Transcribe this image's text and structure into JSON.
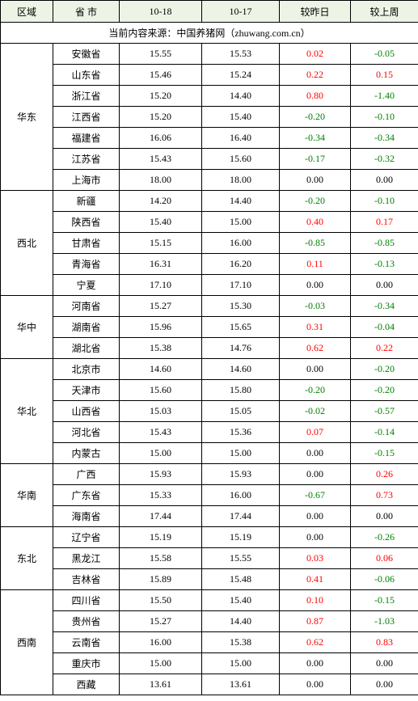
{
  "headers": {
    "region": "区域",
    "province": "省 市",
    "date1": "10-18",
    "date2": "10-17",
    "vs_yesterday": "较昨日",
    "vs_lastweek": "较上周"
  },
  "source_line": "当前内容来源：中国养猪网（zhuwang.com.cn）",
  "colors": {
    "header_bg": "#edf4e5",
    "border": "#000000",
    "positive": "#ff0000",
    "negative": "#008000",
    "zero": "#000000"
  },
  "regions": [
    {
      "name": "华东",
      "rows": [
        {
          "prov": "安徽省",
          "d1": "15.55",
          "d2": "15.53",
          "dy": "0.02",
          "dw": "-0.05"
        },
        {
          "prov": "山东省",
          "d1": "15.46",
          "d2": "15.24",
          "dy": "0.22",
          "dw": "0.15"
        },
        {
          "prov": "浙江省",
          "d1": "15.20",
          "d2": "14.40",
          "dy": "0.80",
          "dw": "-1.40"
        },
        {
          "prov": "江西省",
          "d1": "15.20",
          "d2": "15.40",
          "dy": "-0.20",
          "dw": "-0.10"
        },
        {
          "prov": "福建省",
          "d1": "16.06",
          "d2": "16.40",
          "dy": "-0.34",
          "dw": "-0.34"
        },
        {
          "prov": "江苏省",
          "d1": "15.43",
          "d2": "15.60",
          "dy": "-0.17",
          "dw": "-0.32"
        },
        {
          "prov": "上海市",
          "d1": "18.00",
          "d2": "18.00",
          "dy": "0.00",
          "dw": "0.00"
        }
      ]
    },
    {
      "name": "西北",
      "rows": [
        {
          "prov": "新疆",
          "d1": "14.20",
          "d2": "14.40",
          "dy": "-0.20",
          "dw": "-0.10"
        },
        {
          "prov": "陕西省",
          "d1": "15.40",
          "d2": "15.00",
          "dy": "0.40",
          "dw": "0.17"
        },
        {
          "prov": "甘肃省",
          "d1": "15.15",
          "d2": "16.00",
          "dy": "-0.85",
          "dw": "-0.85"
        },
        {
          "prov": "青海省",
          "d1": "16.31",
          "d2": "16.20",
          "dy": "0.11",
          "dw": "-0.13"
        },
        {
          "prov": "宁夏",
          "d1": "17.10",
          "d2": "17.10",
          "dy": "0.00",
          "dw": "0.00"
        }
      ]
    },
    {
      "name": "华中",
      "rows": [
        {
          "prov": "河南省",
          "d1": "15.27",
          "d2": "15.30",
          "dy": "-0.03",
          "dw": "-0.34"
        },
        {
          "prov": "湖南省",
          "d1": "15.96",
          "d2": "15.65",
          "dy": "0.31",
          "dw": "-0.04"
        },
        {
          "prov": "湖北省",
          "d1": "15.38",
          "d2": "14.76",
          "dy": "0.62",
          "dw": "0.22"
        }
      ]
    },
    {
      "name": "华北",
      "rows": [
        {
          "prov": "北京市",
          "d1": "14.60",
          "d2": "14.60",
          "dy": "0.00",
          "dw": "-0.20"
        },
        {
          "prov": "天津市",
          "d1": "15.60",
          "d2": "15.80",
          "dy": "-0.20",
          "dw": "-0.20"
        },
        {
          "prov": "山西省",
          "d1": "15.03",
          "d2": "15.05",
          "dy": "-0.02",
          "dw": "-0.57"
        },
        {
          "prov": "河北省",
          "d1": "15.43",
          "d2": "15.36",
          "dy": "0.07",
          "dw": "-0.14"
        },
        {
          "prov": "内蒙古",
          "d1": "15.00",
          "d2": "15.00",
          "dy": "0.00",
          "dw": "-0.15"
        }
      ]
    },
    {
      "name": "华南",
      "rows": [
        {
          "prov": "广西",
          "d1": "15.93",
          "d2": "15.93",
          "dy": "0.00",
          "dw": "0.26"
        },
        {
          "prov": "广东省",
          "d1": "15.33",
          "d2": "16.00",
          "dy": "-0.67",
          "dw": "0.73"
        },
        {
          "prov": "海南省",
          "d1": "17.44",
          "d2": "17.44",
          "dy": "0.00",
          "dw": "0.00"
        }
      ]
    },
    {
      "name": "东北",
      "rows": [
        {
          "prov": "辽宁省",
          "d1": "15.19",
          "d2": "15.19",
          "dy": "0.00",
          "dw": "-0.26"
        },
        {
          "prov": "黑龙江",
          "d1": "15.58",
          "d2": "15.55",
          "dy": "0.03",
          "dw": "0.06"
        },
        {
          "prov": "吉林省",
          "d1": "15.89",
          "d2": "15.48",
          "dy": "0.41",
          "dw": "-0.06"
        }
      ]
    },
    {
      "name": "西南",
      "rows": [
        {
          "prov": "四川省",
          "d1": "15.50",
          "d2": "15.40",
          "dy": "0.10",
          "dw": "-0.15"
        },
        {
          "prov": "贵州省",
          "d1": "15.27",
          "d2": "14.40",
          "dy": "0.87",
          "dw": "-1.03"
        },
        {
          "prov": "云南省",
          "d1": "16.00",
          "d2": "15.38",
          "dy": "0.62",
          "dw": "0.83"
        },
        {
          "prov": "重庆市",
          "d1": "15.00",
          "d2": "15.00",
          "dy": "0.00",
          "dw": "0.00"
        },
        {
          "prov": "西藏",
          "d1": "13.61",
          "d2": "13.61",
          "dy": "0.00",
          "dw": "0.00"
        }
      ]
    }
  ]
}
